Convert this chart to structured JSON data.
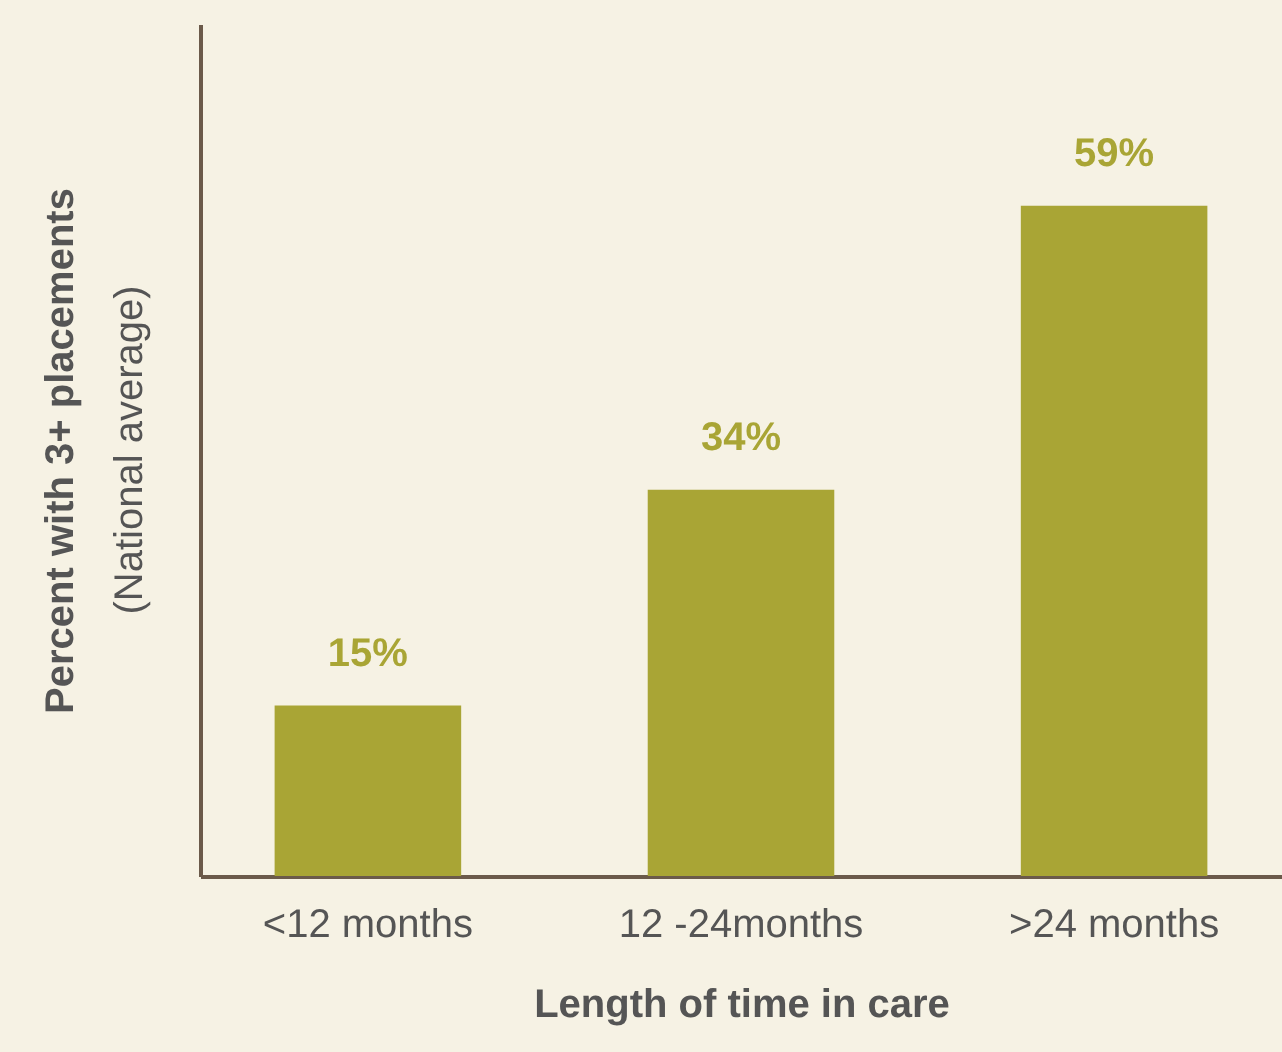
{
  "chart_data": {
    "type": "bar",
    "categories": [
      "<12 months",
      "12 -24months",
      ">24 months"
    ],
    "values": [
      15,
      34,
      59
    ],
    "value_labels": [
      "15%",
      "34%",
      "59%"
    ],
    "color": "#a9a535",
    "ylim": [
      0,
      75
    ],
    "xlabel": "Length of time in care",
    "ylabel": "Percent with 3+ placements",
    "annotations": [
      "(National average)"
    ],
    "tick_labels": "x",
    "grid": false
  }
}
